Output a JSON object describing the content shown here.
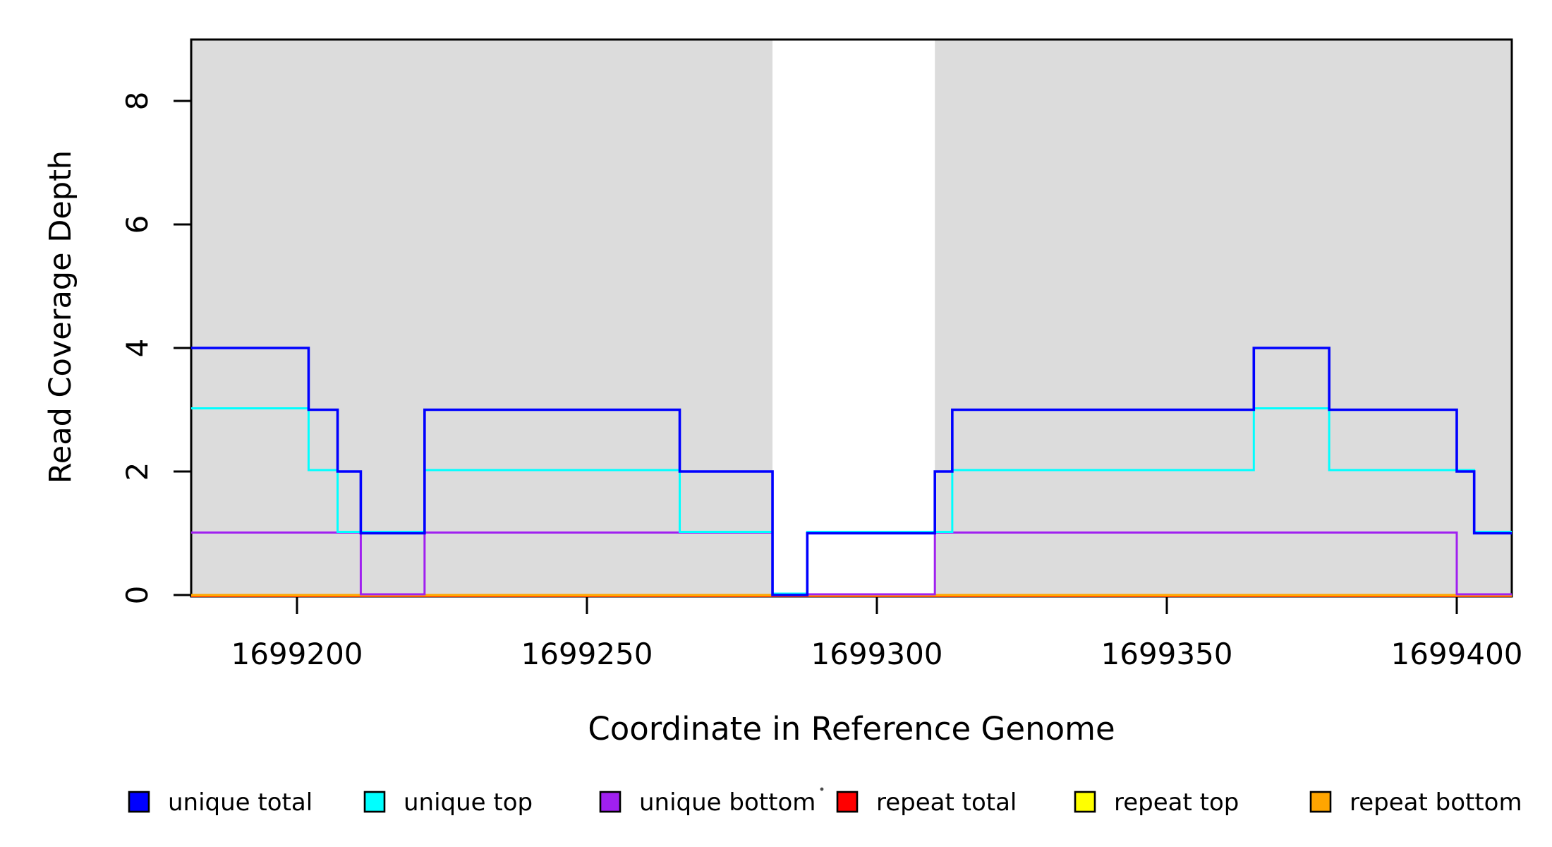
{
  "figure": {
    "background": "#ffffff",
    "plot_bg_shade": "#dcdcdc"
  },
  "chart_data": {
    "type": "line",
    "subtype": "step-coverage",
    "title": "",
    "xlabel": "Coordinate in Reference Genome",
    "ylabel": "Read Coverage Depth",
    "xlim": [
      1699181.75,
      1699409.5
    ],
    "ylim": [
      0,
      9
    ],
    "x_ticks": [
      1699200,
      1699250,
      1699300,
      1699350,
      1699400
    ],
    "y_ticks": [
      0,
      2,
      4,
      6,
      8
    ],
    "grid": false,
    "legend_position": "bottom",
    "shaded_regions": [
      {
        "label": "shaded-block-left",
        "x0": 1699181.75,
        "x1": 1699282,
        "color": "#dcdcdc"
      },
      {
        "label": "shaded-block-right",
        "x0": 1699310,
        "x1": 1699409.5,
        "color": "#dcdcdc"
      }
    ],
    "series": [
      {
        "name": "unique total",
        "color": "#0000ff",
        "steps": [
          [
            1699181.75,
            4
          ],
          [
            1699202,
            3
          ],
          [
            1699207,
            2
          ],
          [
            1699211,
            1
          ],
          [
            1699222,
            3
          ],
          [
            1699266,
            2
          ],
          [
            1699282,
            0
          ],
          [
            1699288,
            1
          ],
          [
            1699310,
            2
          ],
          [
            1699313,
            3
          ],
          [
            1699365,
            4
          ],
          [
            1699378,
            3
          ],
          [
            1699400,
            2
          ],
          [
            1699403,
            1
          ],
          [
            1699409.5,
            1
          ]
        ]
      },
      {
        "name": "unique top",
        "color": "#00ffff",
        "steps": [
          [
            1699181.75,
            3
          ],
          [
            1699202,
            2
          ],
          [
            1699207,
            1
          ],
          [
            1699222,
            2
          ],
          [
            1699266,
            1
          ],
          [
            1699282,
            0
          ],
          [
            1699288,
            1
          ],
          [
            1699313,
            2
          ],
          [
            1699365,
            3
          ],
          [
            1699378,
            2
          ],
          [
            1699403,
            1
          ],
          [
            1699409.5,
            1
          ]
        ]
      },
      {
        "name": "unique bottom",
        "color": "#a020f0",
        "steps": [
          [
            1699181.75,
            1
          ],
          [
            1699211,
            0
          ],
          [
            1699222,
            1
          ],
          [
            1699282,
            0
          ],
          [
            1699310,
            1
          ],
          [
            1699400,
            0
          ],
          [
            1699409.5,
            0
          ]
        ]
      },
      {
        "name": "repeat total",
        "color": "#ff0000",
        "steps": [
          [
            1699181.75,
            0
          ],
          [
            1699409.5,
            0
          ]
        ]
      },
      {
        "name": "repeat top",
        "color": "#ffff00",
        "steps": [
          [
            1699181.75,
            0
          ],
          [
            1699409.5,
            0
          ]
        ]
      },
      {
        "name": "repeat bottom",
        "color": "#ffa500",
        "steps": [
          [
            1699181.75,
            0
          ],
          [
            1699409.5,
            0
          ]
        ]
      }
    ],
    "legend": [
      {
        "label": "unique total",
        "color": "#0000ff"
      },
      {
        "label": "unique top",
        "color": "#00ffff"
      },
      {
        "label": "unique bottom",
        "color": "#a020f0"
      },
      {
        "label": "repeat total",
        "color": "#ff0000"
      },
      {
        "label": "repeat top",
        "color": "#ffff00"
      },
      {
        "label": "repeat bottom",
        "color": "#ffa500"
      }
    ],
    "stray_mark_present": true
  }
}
